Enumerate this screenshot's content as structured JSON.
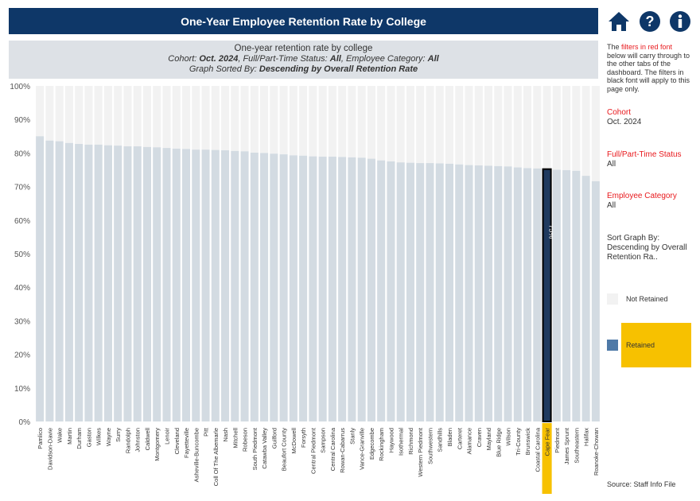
{
  "header": {
    "title": "One-Year Employee Retention Rate by College"
  },
  "info": {
    "line1": "One-year retention rate by college",
    "line2_prefix": "Cohort: ",
    "line2_cohort": "Oct. 2024",
    "line2_mid": ", Full/Part-Time Status: ",
    "line2_status": "All",
    "line2_mid2": ", Employee Category: ",
    "line2_category": "All",
    "line3_prefix": "Graph Sorted By: ",
    "line3_sort": "Descending by Overall Retention Rate"
  },
  "sidebar": {
    "note_part1": "The ",
    "note_red": "filters in red font",
    "note_part2": " below will carry through to the other tabs of the dashboard. The filters in black font will apply to this page only.",
    "cohort_label": "Cohort",
    "cohort_value": "Oct. 2024",
    "status_label": "Full/Part-Time Status",
    "status_value": "All",
    "category_label": "Employee Category",
    "category_value": "All",
    "sort_label": "Sort Graph By:",
    "sort_value": "Descending by Overall Retention Ra..",
    "legend_not_retained": "Not Retained",
    "legend_retained": "Retained",
    "source": "Source: Staff Info File"
  },
  "icons": [
    "home-icon",
    "help-icon",
    "info-icon"
  ],
  "colors": {
    "title_bg": "#0e3768",
    "retained": "#d3dbe2",
    "not_retained": "#f2f2f2",
    "highlight_bar": "#1f3a5f",
    "highlight_label_bg": "#f7c100",
    "legend_retained": "#4e79a7",
    "filter_red": "#e8191d"
  },
  "chart_data": {
    "type": "bar",
    "title": "One-year retention rate by college",
    "ylim": [
      0,
      100
    ],
    "y_ticks": [
      "0%",
      "10%",
      "20%",
      "30%",
      "40%",
      "50%",
      "60%",
      "70%",
      "80%",
      "90%",
      "100%"
    ],
    "stacked": true,
    "highlight": {
      "category": "Cape Fear",
      "label": "75%"
    },
    "categories": [
      "Pamlico",
      "Davidson-Davie",
      "Wake",
      "Martin",
      "Durham",
      "Gaston",
      "Wilkes",
      "Wayne",
      "Surry",
      "Randolph",
      "Johnston",
      "Caldwell",
      "Montgomery",
      "Lenoir",
      "Cleveland",
      "Fayetteville",
      "Asheville-Buncombe",
      "Pitt",
      "Coll Of The Albemarle",
      "Nash",
      "Mitchell",
      "Robeson",
      "South Piedmont",
      "Catawba Valley",
      "Guilford",
      "Beaufort County",
      "McDowell",
      "Forsyth",
      "Central Piedmont",
      "Sampson",
      "Central Carolina",
      "Rowan-Cabarrus",
      "Stanly",
      "Vance-Granville",
      "Edgecombe",
      "Rockingham",
      "Haywood",
      "Isothermal",
      "Richmond",
      "Western Piedmont",
      "Southwestern",
      "Sandhills",
      "Bladen",
      "Carteret",
      "Alamance",
      "Craven",
      "Mayland",
      "Blue Ridge",
      "Wilson",
      "Tri-County",
      "Brunswick",
      "Coastal Carolina",
      "Cape Fear",
      "Piedmont",
      "James Sprunt",
      "Southeastern",
      "Halifax",
      "Roanoke-Chowan"
    ],
    "series": [
      {
        "name": "Retained",
        "values": [
          85,
          83.7,
          83.5,
          83,
          82.7,
          82.5,
          82.5,
          82.3,
          82.2,
          82,
          82,
          81.8,
          81.7,
          81.5,
          81.3,
          81.2,
          81,
          81,
          80.9,
          80.8,
          80.6,
          80.5,
          80.1,
          80,
          79.8,
          79.6,
          79.3,
          79.2,
          79,
          78.9,
          78.9,
          78.8,
          78.7,
          78.6,
          78.3,
          77.8,
          77.5,
          77.2,
          77.1,
          77,
          77,
          76.9,
          76.8,
          76.6,
          76.4,
          76.3,
          76.2,
          76.1,
          76,
          75.7,
          75.5,
          75.4,
          75.2,
          75,
          74.9,
          74.7,
          73.2,
          71.6
        ]
      },
      {
        "name": "Not Retained",
        "values": [
          15,
          16.3,
          16.5,
          17,
          17.3,
          17.5,
          17.5,
          17.7,
          17.8,
          18,
          18,
          18.2,
          18.3,
          18.5,
          18.7,
          18.8,
          19,
          19,
          19.1,
          19.2,
          19.4,
          19.5,
          19.9,
          20,
          20.2,
          20.4,
          20.7,
          20.8,
          21,
          21.1,
          21.1,
          21.2,
          21.3,
          21.4,
          21.7,
          22.2,
          22.5,
          22.8,
          22.9,
          23,
          23,
          23.1,
          23.2,
          23.4,
          23.6,
          23.7,
          23.8,
          23.9,
          24,
          24.3,
          24.5,
          24.6,
          24.8,
          25,
          25.1,
          25.3,
          26.8,
          28.4
        ]
      }
    ]
  }
}
